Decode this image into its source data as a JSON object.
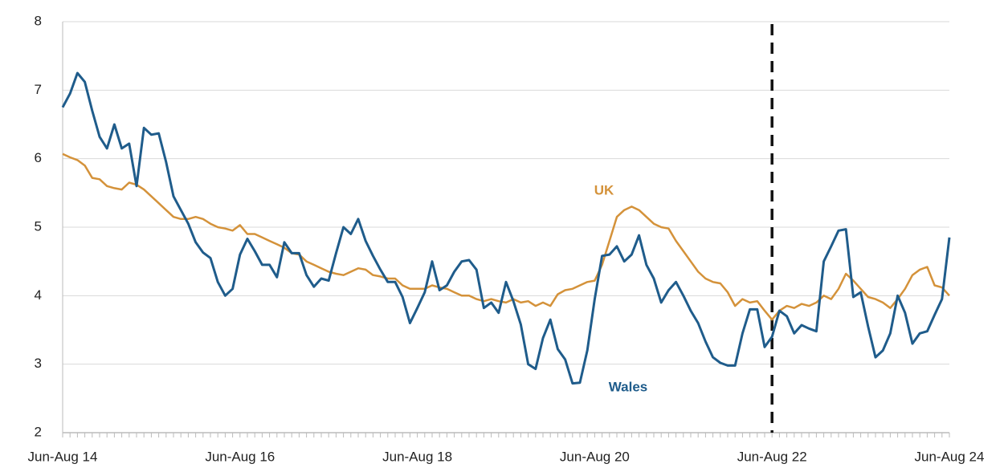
{
  "chart_data": {
    "type": "line",
    "categories": [
      "Jun-Aug 14",
      null,
      null,
      null,
      null,
      null,
      null,
      null,
      null,
      null,
      null,
      null,
      null,
      null,
      null,
      null,
      null,
      null,
      null,
      null,
      null,
      null,
      null,
      null,
      "Jun-Aug 16",
      null,
      null,
      null,
      null,
      null,
      null,
      null,
      null,
      null,
      null,
      null,
      null,
      null,
      null,
      null,
      null,
      null,
      null,
      null,
      null,
      null,
      null,
      null,
      "Jun-Aug 18",
      null,
      null,
      null,
      null,
      null,
      null,
      null,
      null,
      null,
      null,
      null,
      null,
      null,
      null,
      null,
      null,
      null,
      null,
      null,
      null,
      null,
      null,
      null,
      "Jun-Aug 20",
      null,
      null,
      null,
      null,
      null,
      null,
      null,
      null,
      null,
      null,
      null,
      null,
      null,
      null,
      null,
      null,
      null,
      null,
      null,
      null,
      null,
      null,
      null,
      "Jun-Aug 22",
      null,
      null,
      null,
      null,
      null,
      null,
      null,
      null,
      null,
      null,
      null,
      null,
      null,
      null,
      null,
      null,
      null,
      null,
      null,
      null,
      null,
      null,
      null,
      "Jun-Aug 24"
    ],
    "series": [
      {
        "name": "Wales",
        "color": "#1f5c8b",
        "values": [
          6.75,
          6.95,
          7.25,
          7.12,
          6.7,
          6.32,
          6.15,
          6.5,
          6.15,
          6.22,
          5.6,
          6.45,
          6.35,
          6.37,
          5.95,
          5.45,
          5.25,
          5.05,
          4.78,
          4.63,
          4.55,
          4.2,
          4.0,
          4.1,
          4.6,
          4.83,
          4.65,
          4.45,
          4.45,
          4.27,
          4.78,
          4.62,
          4.62,
          4.3,
          4.13,
          4.25,
          4.22,
          4.62,
          5.0,
          4.9,
          5.12,
          4.8,
          4.58,
          4.38,
          4.2,
          4.2,
          3.98,
          3.6,
          3.82,
          4.05,
          4.5,
          4.08,
          4.15,
          4.35,
          4.5,
          4.52,
          4.38,
          3.82,
          3.9,
          3.75,
          4.2,
          3.92,
          3.58,
          3.0,
          2.93,
          3.38,
          3.65,
          3.22,
          3.07,
          2.72,
          2.73,
          3.2,
          3.95,
          4.58,
          4.6,
          4.72,
          4.5,
          4.6,
          4.88,
          4.45,
          4.25,
          3.9,
          4.08,
          4.2,
          4.0,
          3.78,
          3.6,
          3.33,
          3.1,
          3.02,
          2.98,
          2.98,
          3.45,
          3.8,
          3.8,
          3.25,
          3.4,
          3.78,
          3.7,
          3.45,
          3.57,
          3.52,
          3.48,
          4.5,
          4.72,
          4.95,
          4.97,
          3.98,
          4.05,
          3.55,
          3.1,
          3.2,
          3.45,
          4.0,
          3.75,
          3.3,
          3.45,
          3.48,
          3.72,
          3.95,
          4.85
        ]
      },
      {
        "name": "UK",
        "color": "#d4923a",
        "values": [
          6.07,
          6.02,
          5.98,
          5.9,
          5.72,
          5.7,
          5.6,
          5.57,
          5.55,
          5.65,
          5.62,
          5.55,
          5.45,
          5.35,
          5.25,
          5.15,
          5.12,
          5.12,
          5.15,
          5.12,
          5.05,
          5.0,
          4.98,
          4.95,
          5.03,
          4.9,
          4.9,
          4.85,
          4.8,
          4.75,
          4.7,
          4.62,
          4.6,
          4.5,
          4.45,
          4.4,
          4.35,
          4.32,
          4.3,
          4.35,
          4.4,
          4.38,
          4.3,
          4.28,
          4.25,
          4.25,
          4.15,
          4.1,
          4.1,
          4.1,
          4.15,
          4.12,
          4.1,
          4.05,
          4.0,
          4.0,
          3.95,
          3.92,
          3.95,
          3.92,
          3.9,
          3.95,
          3.9,
          3.92,
          3.85,
          3.9,
          3.85,
          4.02,
          4.08,
          4.1,
          4.15,
          4.2,
          4.22,
          4.45,
          4.8,
          5.15,
          5.25,
          5.3,
          5.25,
          5.15,
          5.05,
          5.0,
          4.98,
          4.8,
          4.65,
          4.5,
          4.35,
          4.25,
          4.2,
          4.18,
          4.05,
          3.85,
          3.95,
          3.9,
          3.92,
          3.78,
          3.65,
          3.78,
          3.85,
          3.82,
          3.88,
          3.85,
          3.9,
          4.0,
          3.95,
          4.1,
          4.32,
          4.22,
          4.1,
          3.98,
          3.95,
          3.9,
          3.82,
          3.95,
          4.1,
          4.3,
          4.38,
          4.42,
          4.15,
          4.12,
          4.0
        ]
      }
    ],
    "ylim": [
      2,
      8
    ],
    "yticks": [
      2,
      3,
      4,
      5,
      6,
      7,
      8
    ],
    "grid": true,
    "vline": "Jun-Aug 22"
  }
}
